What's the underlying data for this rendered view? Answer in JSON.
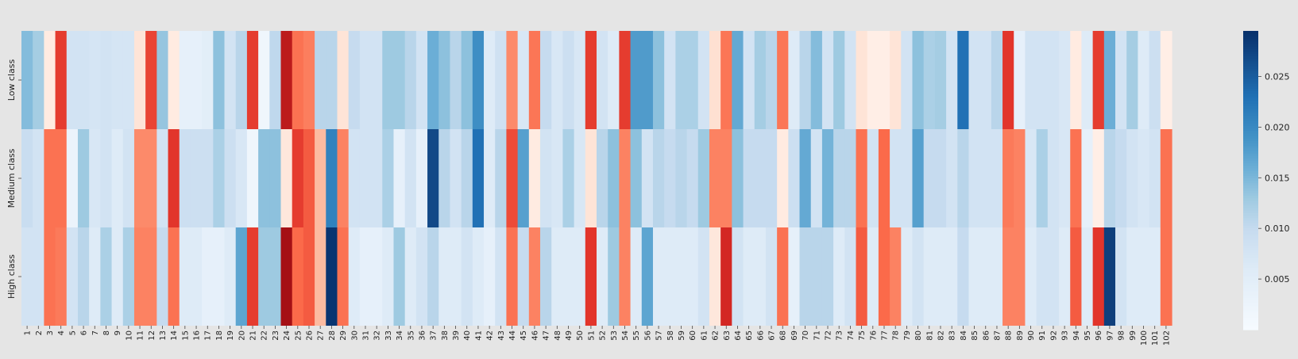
{
  "chart_data": {
    "type": "heatmap",
    "title": "",
    "xlabel": "",
    "ylabel": "",
    "rows": [
      "Low class",
      "Medium class",
      "High class"
    ],
    "columns": [
      "1",
      "2",
      "3",
      "4",
      "5",
      "6",
      "7",
      "8",
      "9",
      "10",
      "11",
      "12",
      "13",
      "14",
      "15",
      "16",
      "17",
      "18",
      "19",
      "20",
      "21",
      "22",
      "23",
      "24",
      "25",
      "26",
      "27",
      "28",
      "29",
      "30",
      "31",
      "32",
      "33",
      "34",
      "35",
      "36",
      "37",
      "38",
      "39",
      "40",
      "41",
      "42",
      "43",
      "44",
      "45",
      "46",
      "47",
      "48",
      "49",
      "50",
      "51",
      "52",
      "53",
      "54",
      "55",
      "56",
      "57",
      "58",
      "59",
      "60",
      "61",
      "62",
      "63",
      "64",
      "65",
      "66",
      "67",
      "68",
      "69",
      "70",
      "71",
      "72",
      "73",
      "74",
      "75",
      "76",
      "77",
      "78",
      "79",
      "80",
      "81",
      "82",
      "83",
      "84",
      "85",
      "86",
      "87",
      "88",
      "89",
      "90",
      "91",
      "92",
      "93",
      "94",
      "95",
      "96",
      "97",
      "98",
      "99",
      "100",
      "101",
      "102"
    ],
    "values": [
      [
        0.0145,
        0.0125,
        0.003,
        0.026,
        0.008,
        0.008,
        0.0075,
        0.008,
        0.0075,
        0.0075,
        0.005,
        0.0255,
        0.0135,
        0.003,
        0.004,
        0.004,
        0.005,
        0.014,
        0.008,
        0.011,
        0.026,
        0.002,
        0.0105,
        0.0285,
        0.022,
        0.0205,
        0.011,
        0.011,
        0.005,
        0.01,
        0.008,
        0.008,
        0.013,
        0.013,
        0.011,
        0.008,
        0.016,
        0.014,
        0.011,
        0.014,
        0.0195,
        0.006,
        0.0085,
        0.019,
        0.007,
        0.0215,
        0.01,
        0.007,
        0.009,
        0.007,
        0.026,
        0.008,
        0.006,
        0.026,
        0.018,
        0.018,
        0.014,
        0.008,
        0.012,
        0.012,
        0.008,
        0.006,
        0.0215,
        0.0165,
        0.008,
        0.0125,
        0.011,
        0.0215,
        0.006,
        0.011,
        0.0145,
        0.008,
        0.013,
        0.008,
        0.005,
        0.002,
        0.002,
        0.005,
        0.008,
        0.014,
        0.012,
        0.0125,
        0.008,
        0.023,
        0.008,
        0.008,
        0.011,
        0.0265,
        0.004,
        0.008,
        0.008,
        0.008,
        0.007,
        0.003,
        0.006,
        0.026,
        0.016,
        0.008,
        0.0125,
        0.006,
        0.009,
        0.002
      ],
      [
        0.0095,
        0.008,
        0.022,
        0.022,
        0.003,
        0.013,
        0.007,
        0.008,
        0.006,
        0.008,
        0.019,
        0.019,
        0.008,
        0.0265,
        0.009,
        0.009,
        0.009,
        0.012,
        0.009,
        0.007,
        0.002,
        0.014,
        0.014,
        0.004,
        0.026,
        0.024,
        0.012,
        0.021,
        0.02,
        0.008,
        0.008,
        0.008,
        0.012,
        0.004,
        0.008,
        0.004,
        0.027,
        0.011,
        0.008,
        0.011,
        0.023,
        0.006,
        0.011,
        0.025,
        0.0175,
        0.003,
        0.008,
        0.007,
        0.012,
        0.007,
        0.005,
        0.011,
        0.014,
        0.02,
        0.014,
        0.008,
        0.011,
        0.01,
        0.011,
        0.01,
        0.013,
        0.02,
        0.02,
        0.014,
        0.01,
        0.01,
        0.01,
        0.003,
        0.009,
        0.0165,
        0.008,
        0.0155,
        0.011,
        0.011,
        0.022,
        0.008,
        0.023,
        0.008,
        0.008,
        0.0175,
        0.01,
        0.01,
        0.008,
        0.011,
        0.008,
        0.008,
        0.008,
        0.021,
        0.02,
        0.007,
        0.012,
        0.008,
        0.007,
        0.022,
        0.004,
        0.002,
        0.011,
        0.01,
        0.008,
        0.007,
        0.008,
        0.022
      ],
      [
        0.008,
        0.008,
        0.022,
        0.021,
        0.008,
        0.011,
        0.006,
        0.012,
        0.006,
        0.012,
        0.02,
        0.02,
        0.01,
        0.022,
        0.006,
        0.006,
        0.004,
        0.004,
        0.006,
        0.017,
        0.026,
        0.013,
        0.013,
        0.0295,
        0.023,
        0.024,
        0.012,
        0.029,
        0.022,
        0.006,
        0.004,
        0.004,
        0.006,
        0.013,
        0.006,
        0.008,
        0.011,
        0.006,
        0.006,
        0.008,
        0.006,
        0.004,
        0.008,
        0.022,
        0.01,
        0.02,
        0.011,
        0.006,
        0.006,
        0.006,
        0.0265,
        0.006,
        0.013,
        0.02,
        0.006,
        0.017,
        0.006,
        0.006,
        0.006,
        0.006,
        0.008,
        0.004,
        0.0275,
        0.008,
        0.006,
        0.006,
        0.008,
        0.022,
        0.004,
        0.011,
        0.011,
        0.011,
        0.006,
        0.008,
        0.024,
        0.006,
        0.023,
        0.02,
        0.006,
        0.008,
        0.006,
        0.006,
        0.006,
        0.01,
        0.006,
        0.006,
        0.006,
        0.02,
        0.02,
        0.006,
        0.008,
        0.008,
        0.006,
        0.024,
        0.006,
        0.0265,
        0.028,
        0.008,
        0.006,
        0.006,
        0.006,
        0.022
      ]
    ],
    "colorbar": {
      "ticks": [
        "0.005",
        "0.010",
        "0.015",
        "0.020",
        "0.025"
      ],
      "tick_values": [
        0.005,
        0.01,
        0.015,
        0.02,
        0.025
      ],
      "range": [
        0.0,
        0.0295
      ]
    },
    "color_map": [
      "#f7fbff",
      "#deebf7",
      "#c6dbef",
      "#9ecae1",
      "#6baed6",
      "#4292c6",
      "#2171b5",
      "#08306b",
      "#fee0d2",
      "#fcbba1",
      "#fc9272",
      "#fb6a4a",
      "#de2d26",
      "#a50f15"
    ]
  }
}
